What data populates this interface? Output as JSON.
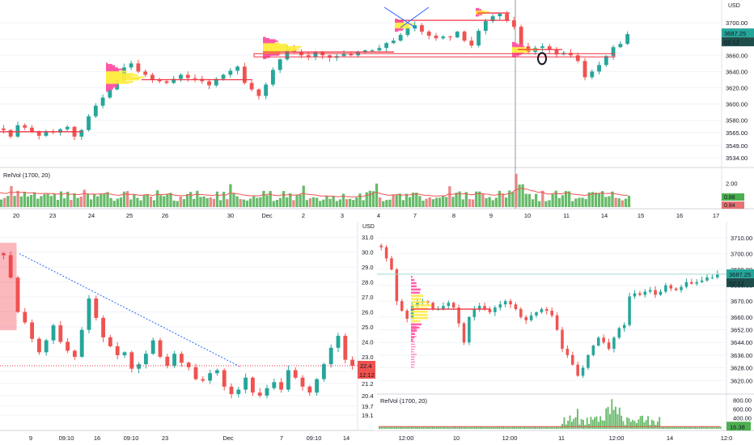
{
  "colors": {
    "up": "#26a69a",
    "down": "#ef5350",
    "grid": "#f0f3fa",
    "axis_line": "#e0e3eb",
    "level": "#f23645",
    "profile_value": "#ffeb3b",
    "profile_up": "#ff4fa3",
    "trend": "#2962ff",
    "vol_up": "#4caf50",
    "vol_down": "#e57373",
    "text": "#131722"
  },
  "chart_data": [
    {
      "id": "main",
      "type": "candlestick",
      "currency_label": "USD",
      "y_ticks": [
        "3700.00",
        "3680.00",
        "3660.00",
        "3640.00",
        "3620.00",
        "3600.00",
        "3580.00",
        "3565.00",
        "3549.00",
        "3534.00"
      ],
      "ylim": [
        3527,
        3720
      ],
      "price_tag": "3687.25",
      "timer_tag": "02:12",
      "x_ticks": [
        "20",
        "23",
        "24",
        "25",
        "26",
        "30",
        "Dec",
        "2",
        "3",
        "4",
        "7",
        "8",
        "9",
        "10",
        "11",
        "14",
        "15",
        "16",
        "17"
      ],
      "closes": [
        3568,
        3560,
        3574,
        3571,
        3566,
        3561,
        3566,
        3565,
        3569,
        3572,
        3560,
        3568,
        3585,
        3598,
        3608,
        3618,
        3629,
        3645,
        3650,
        3640,
        3636,
        3630,
        3628,
        3626,
        3631,
        3636,
        3632,
        3631,
        3628,
        3623,
        3631,
        3636,
        3641,
        3646,
        3626,
        3618,
        3610,
        3624,
        3642,
        3655,
        3668,
        3664,
        3660,
        3658,
        3664,
        3660,
        3657,
        3659,
        3662,
        3660,
        3664,
        3666,
        3666,
        3669,
        3675,
        3678,
        3685,
        3693,
        3697,
        3689,
        3684,
        3681,
        3683,
        3682,
        3689,
        3678,
        3672,
        3690,
        3702,
        3708,
        3711,
        3703,
        3695,
        3671,
        3664,
        3669,
        3671,
        3667,
        3661,
        3663,
        3660,
        3653,
        3633,
        3640,
        3648,
        3659,
        3670,
        3674,
        3686
      ],
      "indicator": {
        "label": "RelVol (1700, 20)",
        "y_ticks": [
          "2.00",
          "1.00"
        ],
        "ylim": [
          0,
          3.0
        ],
        "tags": [
          "0.88",
          "0.84"
        ]
      }
    },
    {
      "id": "bottom_left",
      "type": "candlestick",
      "currency_label": "USD",
      "y_ticks": [
        "31.0",
        "30.0",
        "29.0",
        "28.0",
        "27.0",
        "26.0",
        "25.0",
        "24.0",
        "23.0",
        "22.0",
        "21.2",
        "20.4",
        "19.7",
        "19.1"
      ],
      "ylim": [
        18.5,
        31.5
      ],
      "price_tag": "22.4",
      "timer_tag": "12:12",
      "x_ticks": [
        "9",
        "09:10",
        "16",
        "09:10",
        "23",
        "Dec",
        "7",
        "09:10",
        "14"
      ],
      "closes": [
        29.8,
        28.3,
        26.0,
        25.3,
        24.2,
        23.3,
        24.1,
        25.1,
        24.0,
        23.4,
        23.0,
        24.8,
        26.9,
        25.6,
        24.3,
        23.7,
        23.1,
        23.3,
        22.2,
        22.5,
        23.2,
        24.1,
        23.0,
        22.4,
        23.2,
        22.6,
        22.3,
        21.5,
        21.4,
        21.9,
        22.1,
        21.0,
        20.5,
        20.8,
        21.6,
        20.6,
        20.4,
        20.9,
        21.3,
        20.8,
        22.1,
        21.6,
        21.0,
        20.6,
        21.5,
        22.5,
        23.6,
        24.4,
        22.8,
        22.4
      ]
    },
    {
      "id": "bottom_right",
      "type": "candlestick",
      "y_ticks": [
        "3710.00",
        "3700.00",
        "3690.00",
        "3680.00",
        "3670.00",
        "3660.00",
        "3652.00",
        "3644.00",
        "3636.00",
        "3628.00",
        "3620.00"
      ],
      "ylim": [
        3613,
        3715
      ],
      "price_tag": "3687.25",
      "timer_tag": "02:12",
      "x_ticks": [
        "12:00",
        "10",
        "12:00",
        "11",
        "12:00",
        "14",
        "12:0"
      ],
      "closes": [
        3704,
        3697,
        3690,
        3670,
        3664,
        3659,
        3667,
        3669,
        3670,
        3669,
        3665,
        3665,
        3667,
        3669,
        3666,
        3656,
        3644,
        3660,
        3665,
        3667,
        3665,
        3663,
        3666,
        3668,
        3670,
        3668,
        3665,
        3660,
        3658,
        3661,
        3663,
        3665,
        3664,
        3661,
        3652,
        3640,
        3636,
        3630,
        3623,
        3628,
        3636,
        3642,
        3647,
        3644,
        3640,
        3647,
        3653,
        3655,
        3673,
        3675,
        3674,
        3676,
        3677,
        3674,
        3676,
        3680,
        3678,
        3677,
        3679,
        3682,
        3681,
        3682,
        3683,
        3685,
        3685,
        3687
      ],
      "indicator": {
        "label": "RelVol (1700, 20)",
        "y_ticks": [
          "800.00",
          "600.00",
          "400.00"
        ],
        "ylim": [
          150,
          880
        ],
        "tags": [
          "16.38"
        ]
      }
    }
  ]
}
